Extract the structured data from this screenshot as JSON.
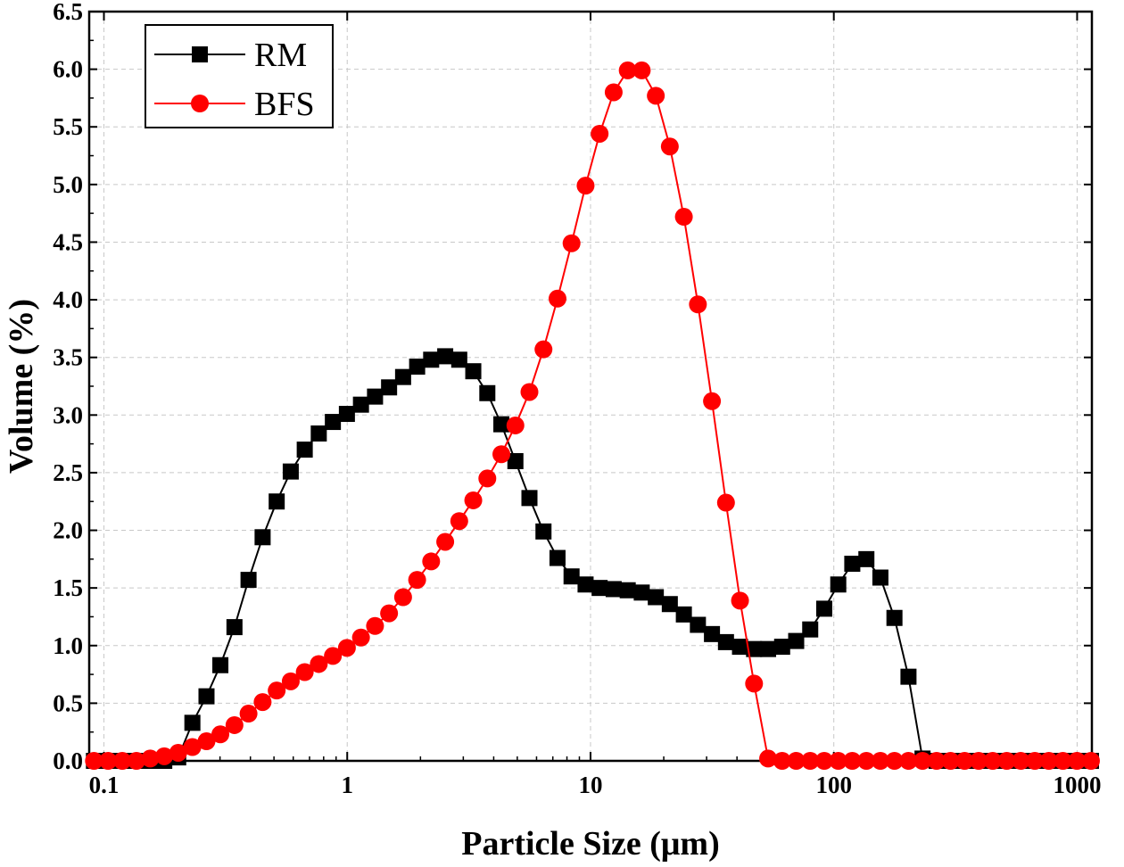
{
  "chart_data": {
    "type": "line",
    "xlabel": "Particle Size (μm)",
    "ylabel": "Volume (%)",
    "xscale": "log",
    "xlim": [
      0.087,
      1150
    ],
    "ylim": [
      0,
      6.5
    ],
    "x_ticks": [
      0.1,
      1,
      10,
      100,
      1000
    ],
    "x_tick_labels": [
      "0.1",
      "1",
      "10",
      "100",
      "1000"
    ],
    "y_ticks": [
      0,
      0.5,
      1,
      1.5,
      2,
      2.5,
      3,
      3.5,
      4,
      4.5,
      5,
      5.5,
      6,
      6.5
    ],
    "y_tick_labels": [
      "0.0",
      "0.5",
      "1.0",
      "1.5",
      "2.0",
      "2.5",
      "3.0",
      "3.5",
      "4.0",
      "4.5",
      "5.0",
      "5.5",
      "6.0",
      "6.5"
    ],
    "grid": true,
    "legend_position": "top-left",
    "series": [
      {
        "name": "RM",
        "color": "#000000",
        "marker": "square",
        "x": [
          0.091,
          0.104,
          0.119,
          0.136,
          0.155,
          0.177,
          0.202,
          0.231,
          0.264,
          0.301,
          0.344,
          0.393,
          0.449,
          0.513,
          0.586,
          0.669,
          0.764,
          0.873,
          0.997,
          1.139,
          1.301,
          1.486,
          1.697,
          1.938,
          2.213,
          2.528,
          2.887,
          3.297,
          3.766,
          4.301,
          4.912,
          5.61,
          6.407,
          7.317,
          8.357,
          9.544,
          10.9,
          12.45,
          14.22,
          16.24,
          18.55,
          21.18,
          24.19,
          27.63,
          31.56,
          36.04,
          41.16,
          47.01,
          53.69,
          61.32,
          70.03,
          79.98,
          91.34,
          104.3,
          119.1,
          136.1,
          155.4,
          177.5,
          202.7,
          231.5,
          264.4,
          301.9,
          344.8,
          393.8,
          449.8,
          513.7,
          586.7,
          670.1,
          765.3,
          874.1,
          998.3,
          1140
        ],
        "y": [
          0,
          0,
          0,
          0,
          0,
          0,
          0.03,
          0.33,
          0.56,
          0.83,
          1.16,
          1.57,
          1.94,
          2.25,
          2.51,
          2.7,
          2.84,
          2.94,
          3.01,
          3.09,
          3.16,
          3.24,
          3.33,
          3.42,
          3.48,
          3.51,
          3.48,
          3.38,
          3.19,
          2.92,
          2.6,
          2.28,
          1.99,
          1.76,
          1.6,
          1.53,
          1.5,
          1.49,
          1.48,
          1.46,
          1.42,
          1.36,
          1.27,
          1.18,
          1.1,
          1.03,
          0.99,
          0.97,
          0.97,
          0.99,
          1.04,
          1.14,
          1.32,
          1.53,
          1.71,
          1.75,
          1.59,
          1.24,
          0.73,
          0.02,
          0,
          0,
          0,
          0,
          0,
          0,
          0,
          0,
          0,
          0,
          0,
          0
        ]
      },
      {
        "name": "BFS",
        "color": "#ff0000",
        "marker": "circle",
        "x": [
          0.091,
          0.104,
          0.119,
          0.136,
          0.155,
          0.177,
          0.202,
          0.231,
          0.264,
          0.301,
          0.344,
          0.393,
          0.449,
          0.513,
          0.586,
          0.669,
          0.764,
          0.873,
          0.997,
          1.139,
          1.301,
          1.486,
          1.697,
          1.938,
          2.213,
          2.528,
          2.887,
          3.297,
          3.766,
          4.301,
          4.912,
          5.61,
          6.407,
          7.317,
          8.357,
          9.544,
          10.9,
          12.45,
          14.22,
          16.24,
          18.55,
          21.18,
          24.19,
          27.63,
          31.56,
          36.04,
          41.16,
          47.01,
          53.69,
          61.32,
          70.03,
          79.98,
          91.34,
          104.3,
          119.1,
          136.1,
          155.4,
          177.5,
          202.7,
          231.5,
          264.4,
          301.9,
          344.8,
          393.8,
          449.8,
          513.7,
          586.7,
          670.1,
          765.3,
          874.1,
          998.3,
          1140
        ],
        "y": [
          0,
          0,
          0,
          0,
          0.02,
          0.04,
          0.07,
          0.12,
          0.17,
          0.23,
          0.31,
          0.41,
          0.51,
          0.61,
          0.69,
          0.77,
          0.84,
          0.91,
          0.98,
          1.07,
          1.17,
          1.28,
          1.42,
          1.57,
          1.73,
          1.9,
          2.08,
          2.26,
          2.45,
          2.66,
          2.91,
          3.2,
          3.57,
          4.01,
          4.49,
          4.99,
          5.44,
          5.8,
          5.99,
          5.99,
          5.77,
          5.33,
          4.72,
          3.96,
          3.12,
          2.24,
          1.39,
          0.67,
          0.02,
          0,
          0,
          0,
          0,
          0,
          0,
          0,
          0,
          0,
          0,
          0,
          0,
          0,
          0,
          0,
          0,
          0,
          0,
          0,
          0,
          0,
          0,
          0
        ]
      }
    ]
  }
}
